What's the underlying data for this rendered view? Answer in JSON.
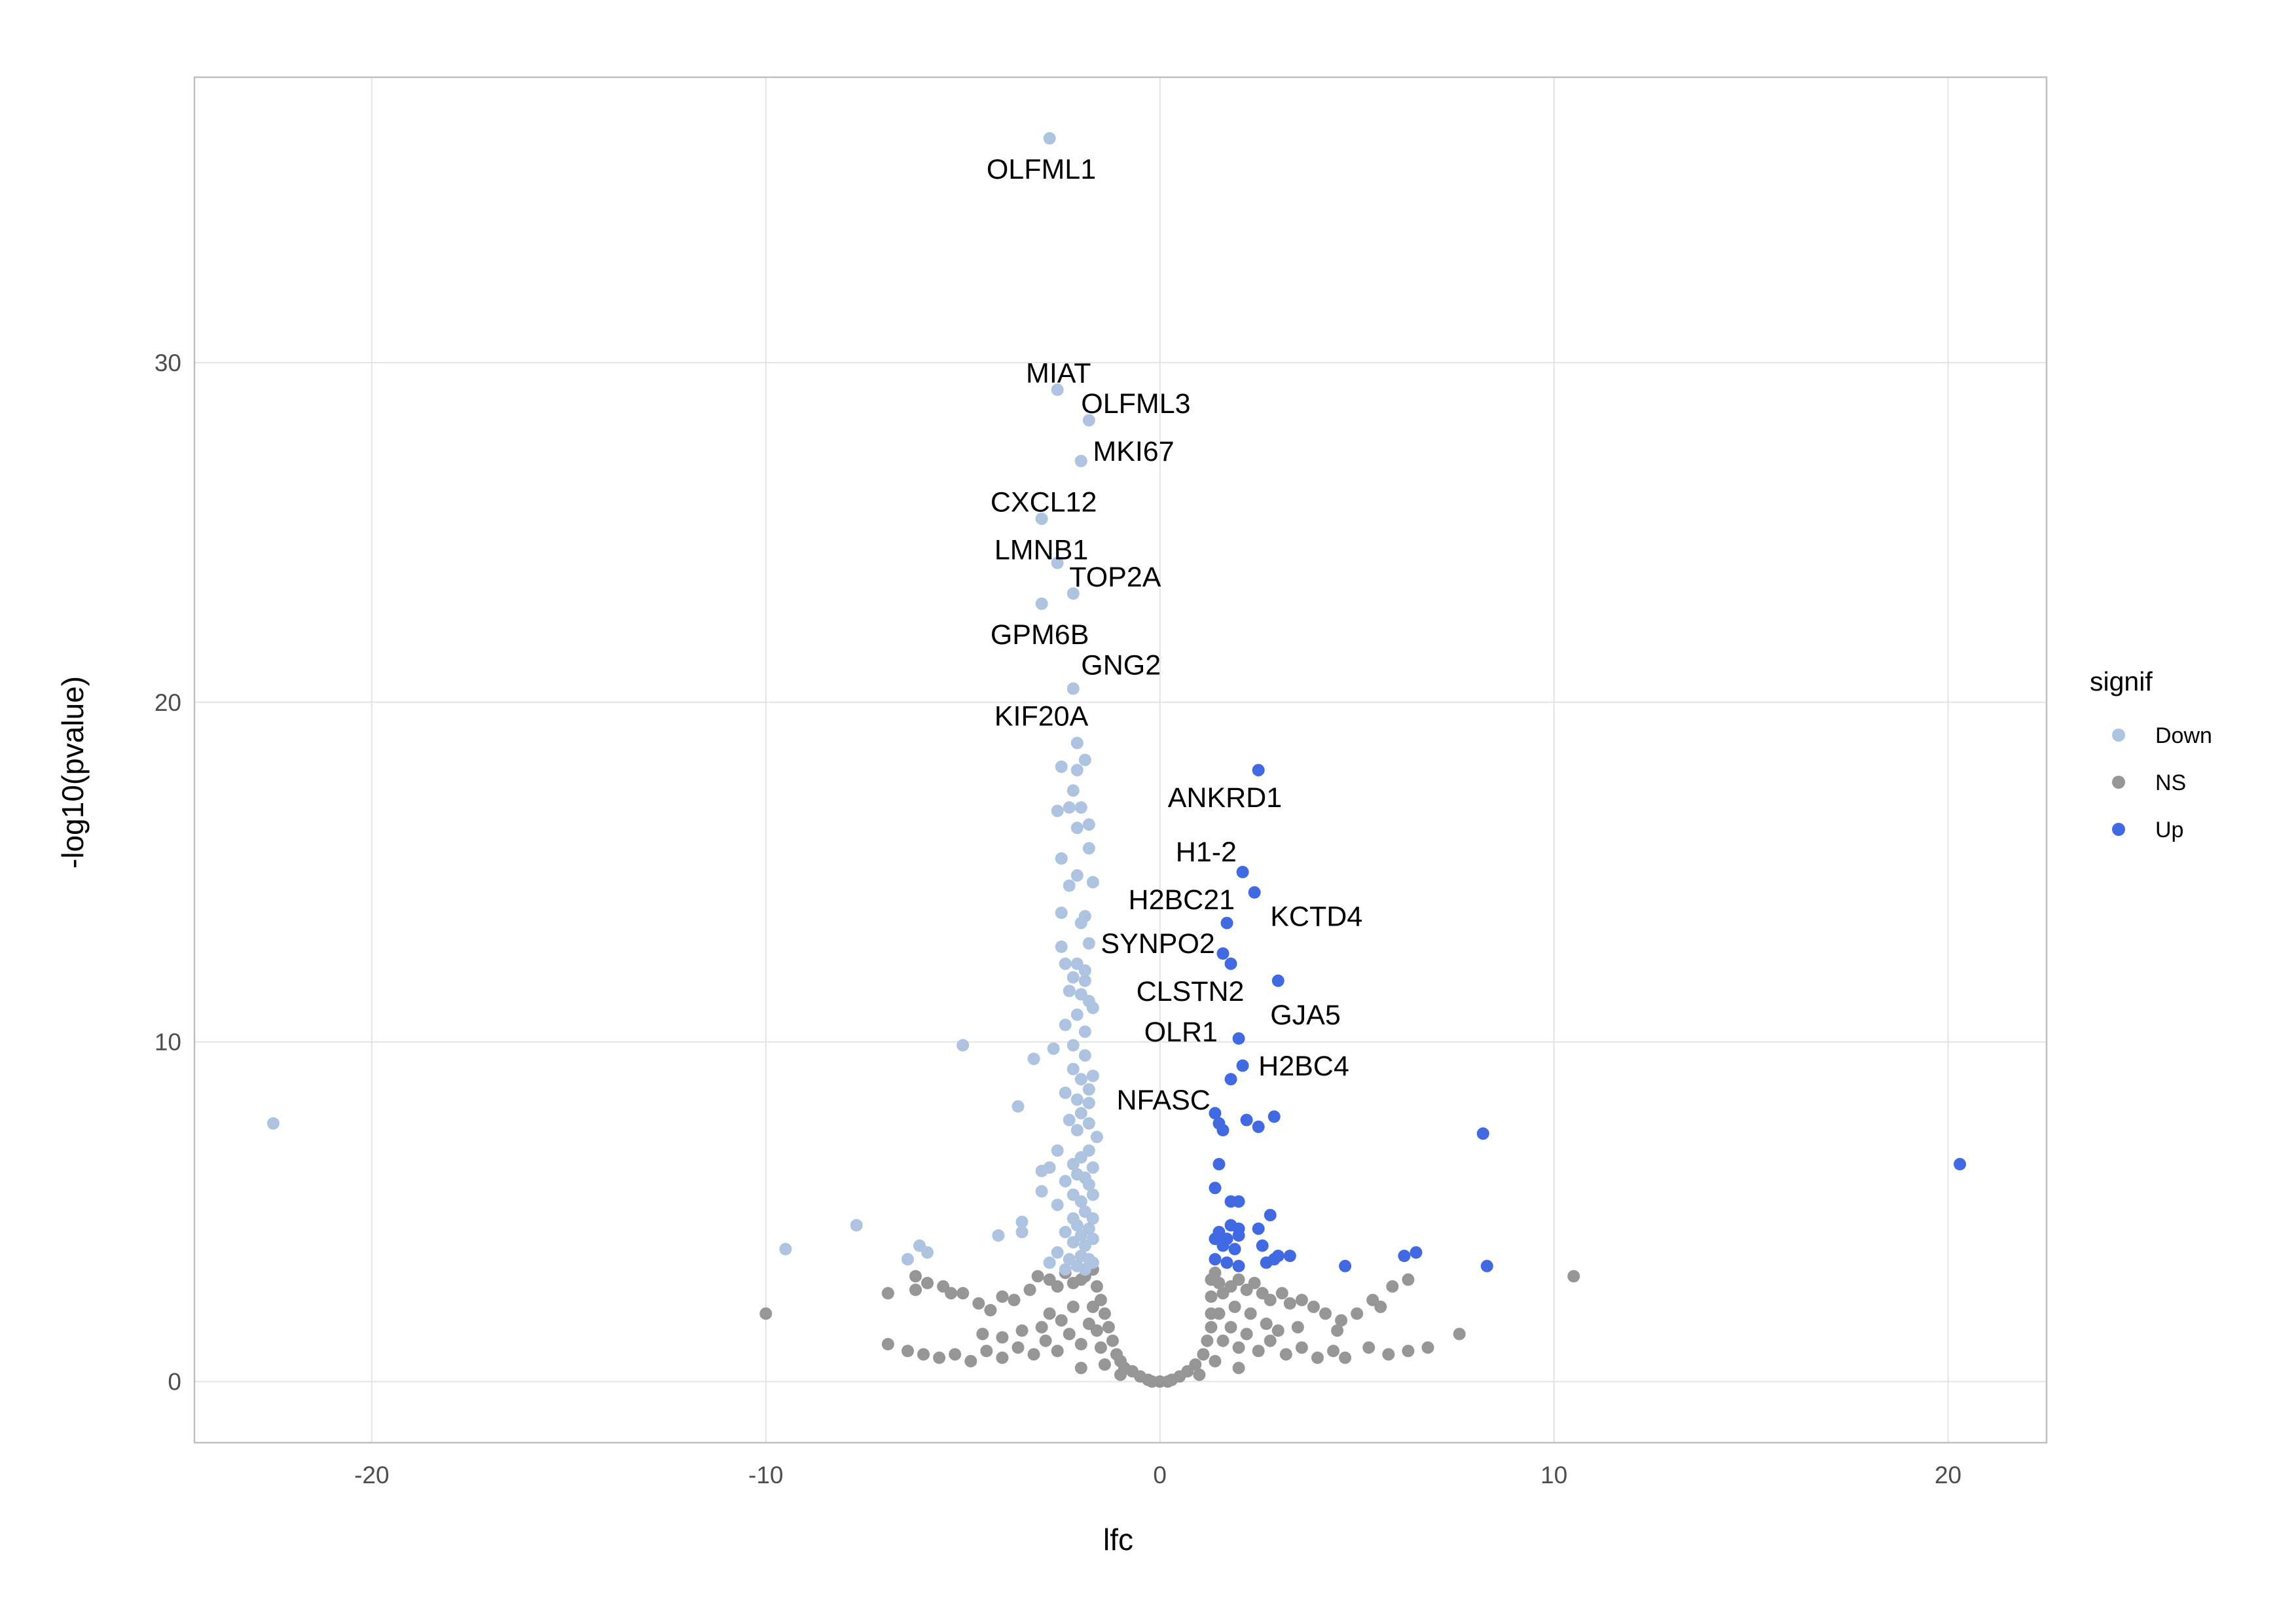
{
  "chart_data": {
    "type": "scatter",
    "xlabel": "lfc",
    "ylabel": "-log10(pvalue)",
    "xlim": [
      -24.5,
      22.5
    ],
    "ylim": [
      -1.8,
      38.4
    ],
    "x_ticks": [
      -20,
      -10,
      0,
      10,
      20
    ],
    "x_tick_labels": [
      "-20",
      "-10",
      "0",
      "10",
      "20"
    ],
    "y_ticks": [
      0,
      10,
      20,
      30
    ],
    "y_tick_labels": [
      "0",
      "10",
      "20",
      "30"
    ],
    "grid": true,
    "legend": {
      "title": "signif",
      "position": "right",
      "entries": [
        {
          "label": "Down",
          "color": "#aec3df"
        },
        {
          "label": "NS",
          "color": "#969696"
        },
        {
          "label": "Up",
          "color": "#4169e1"
        }
      ]
    },
    "series": [
      {
        "name": "Down",
        "color": "#aec3df",
        "points": [
          [
            -2.8,
            36.6
          ],
          [
            -2.6,
            29.2
          ],
          [
            -1.8,
            28.3
          ],
          [
            -2.0,
            27.1
          ],
          [
            -3.0,
            25.4
          ],
          [
            -2.6,
            24.1
          ],
          [
            -2.2,
            23.2
          ],
          [
            -3.0,
            22.9
          ],
          [
            -2.2,
            20.4
          ],
          [
            -2.1,
            18.8
          ],
          [
            -2.5,
            18.1
          ],
          [
            -2.1,
            18.0
          ],
          [
            -1.9,
            18.3
          ],
          [
            -2.2,
            17.4
          ],
          [
            -2.6,
            16.8
          ],
          [
            -2.3,
            16.9
          ],
          [
            -2.0,
            16.9
          ],
          [
            -2.1,
            16.3
          ],
          [
            -1.8,
            16.4
          ],
          [
            -1.8,
            15.7
          ],
          [
            -2.5,
            15.4
          ],
          [
            -2.1,
            14.9
          ],
          [
            -1.7,
            14.7
          ],
          [
            -2.3,
            14.6
          ],
          [
            -2.0,
            13.5
          ],
          [
            -1.9,
            13.7
          ],
          [
            -2.5,
            13.8
          ],
          [
            -2.5,
            12.8
          ],
          [
            -1.8,
            12.9
          ],
          [
            -2.4,
            12.3
          ],
          [
            -2.1,
            12.3
          ],
          [
            -1.9,
            12.1
          ],
          [
            -2.2,
            11.9
          ],
          [
            -1.9,
            11.8
          ],
          [
            -2.3,
            11.5
          ],
          [
            -2.0,
            11.4
          ],
          [
            -1.8,
            11.2
          ],
          [
            -2.1,
            10.8
          ],
          [
            -1.7,
            11.0
          ],
          [
            -2.4,
            10.5
          ],
          [
            -1.9,
            10.3
          ],
          [
            -2.7,
            9.8
          ],
          [
            -2.2,
            9.9
          ],
          [
            -1.9,
            9.6
          ],
          [
            -5.0,
            9.9
          ],
          [
            -3.2,
            9.5
          ],
          [
            -2.2,
            9.2
          ],
          [
            -1.7,
            9.0
          ],
          [
            -2.0,
            8.9
          ],
          [
            -1.8,
            8.6
          ],
          [
            -2.4,
            8.5
          ],
          [
            -2.1,
            8.3
          ],
          [
            -1.8,
            8.2
          ],
          [
            -3.6,
            8.1
          ],
          [
            -2.0,
            7.9
          ],
          [
            -2.3,
            7.7
          ],
          [
            -1.8,
            7.6
          ],
          [
            -2.1,
            7.4
          ],
          [
            -1.6,
            7.2
          ],
          [
            -22.5,
            7.6
          ],
          [
            -2.6,
            6.8
          ],
          [
            -2.0,
            6.6
          ],
          [
            -1.8,
            6.8
          ],
          [
            -2.2,
            6.4
          ],
          [
            -1.7,
            6.3
          ],
          [
            -3.0,
            6.2
          ],
          [
            -2.8,
            6.3
          ],
          [
            -2.1,
            6.1
          ],
          [
            -1.9,
            6.0
          ],
          [
            -2.4,
            5.9
          ],
          [
            -1.8,
            5.8
          ],
          [
            -3.0,
            5.6
          ],
          [
            -2.2,
            5.5
          ],
          [
            -1.7,
            5.5
          ],
          [
            -2.0,
            5.3
          ],
          [
            -2.6,
            5.2
          ],
          [
            -1.9,
            5.0
          ],
          [
            -2.2,
            4.8
          ],
          [
            -1.7,
            4.8
          ],
          [
            -3.5,
            4.7
          ],
          [
            -2.1,
            4.6
          ],
          [
            -1.8,
            4.5
          ],
          [
            -7.7,
            4.6
          ],
          [
            -2.4,
            4.4
          ],
          [
            -2.0,
            4.3
          ],
          [
            -4.1,
            4.3
          ],
          [
            -3.5,
            4.4
          ],
          [
            -1.7,
            4.2
          ],
          [
            -2.2,
            4.1
          ],
          [
            -1.9,
            4.0
          ],
          [
            -6.1,
            4.0
          ],
          [
            -5.9,
            3.8
          ],
          [
            -9.5,
            3.9
          ],
          [
            -2.6,
            3.8
          ],
          [
            -2.0,
            3.7
          ],
          [
            -1.8,
            3.6
          ],
          [
            -2.3,
            3.6
          ],
          [
            -6.4,
            3.6
          ],
          [
            -2.8,
            3.5
          ],
          [
            -2.1,
            3.4
          ],
          [
            -1.9,
            3.3
          ],
          [
            -2.4,
            3.3
          ],
          [
            -1.7,
            3.5
          ]
        ]
      },
      {
        "name": "Up",
        "color": "#4169e1",
        "points": [
          [
            2.5,
            18.0
          ],
          [
            2.1,
            15.0
          ],
          [
            2.4,
            14.4
          ],
          [
            1.7,
            13.5
          ],
          [
            1.6,
            12.6
          ],
          [
            1.8,
            12.3
          ],
          [
            3.0,
            11.8
          ],
          [
            2.0,
            10.1
          ],
          [
            2.1,
            9.3
          ],
          [
            1.8,
            8.9
          ],
          [
            1.4,
            7.9
          ],
          [
            1.5,
            7.6
          ],
          [
            1.6,
            7.4
          ],
          [
            2.2,
            7.7
          ],
          [
            2.5,
            7.5
          ],
          [
            2.9,
            7.8
          ],
          [
            8.2,
            7.3
          ],
          [
            20.3,
            6.4
          ],
          [
            1.5,
            6.4
          ],
          [
            1.4,
            5.7
          ],
          [
            1.8,
            5.3
          ],
          [
            2.0,
            5.3
          ],
          [
            2.8,
            4.9
          ],
          [
            1.5,
            4.4
          ],
          [
            1.8,
            4.6
          ],
          [
            2.0,
            4.5
          ],
          [
            2.5,
            4.5
          ],
          [
            1.4,
            4.2
          ],
          [
            1.7,
            4.2
          ],
          [
            2.0,
            4.3
          ],
          [
            1.6,
            4.0
          ],
          [
            1.9,
            3.9
          ],
          [
            2.6,
            4.0
          ],
          [
            3.0,
            3.7
          ],
          [
            3.3,
            3.7
          ],
          [
            1.4,
            3.6
          ],
          [
            1.7,
            3.5
          ],
          [
            2.0,
            3.4
          ],
          [
            2.7,
            3.5
          ],
          [
            2.9,
            3.6
          ],
          [
            4.7,
            3.4
          ],
          [
            6.2,
            3.7
          ],
          [
            6.5,
            3.8
          ],
          [
            8.3,
            3.4
          ]
        ]
      },
      {
        "name": "NS",
        "color": "#969696",
        "points": [
          [
            -10.0,
            2.0
          ],
          [
            -6.9,
            2.6
          ],
          [
            -6.9,
            1.1
          ],
          [
            -6.2,
            3.1
          ],
          [
            -5.9,
            2.9
          ],
          [
            -6.2,
            2.7
          ],
          [
            -5.5,
            2.8
          ],
          [
            -5.3,
            2.6
          ],
          [
            -5.0,
            2.6
          ],
          [
            -4.6,
            2.3
          ],
          [
            -4.3,
            2.1
          ],
          [
            -4.0,
            2.5
          ],
          [
            -3.7,
            2.4
          ],
          [
            -3.3,
            2.7
          ],
          [
            -3.1,
            3.1
          ],
          [
            -2.8,
            3.0
          ],
          [
            -2.6,
            2.8
          ],
          [
            -2.4,
            3.2
          ],
          [
            -2.2,
            2.9
          ],
          [
            -2.0,
            3.0
          ],
          [
            -1.9,
            3.1
          ],
          [
            -1.7,
            3.3
          ],
          [
            -1.6,
            2.8
          ],
          [
            -1.5,
            2.4
          ],
          [
            -1.4,
            2.0
          ],
          [
            -1.3,
            1.6
          ],
          [
            -1.2,
            1.2
          ],
          [
            -1.1,
            0.8
          ],
          [
            -1.0,
            0.6
          ],
          [
            -0.9,
            0.4
          ],
          [
            -0.7,
            0.3
          ],
          [
            -0.5,
            0.15
          ],
          [
            -0.3,
            0.05
          ],
          [
            0.0,
            0.0
          ],
          [
            0.3,
            0.05
          ],
          [
            0.5,
            0.15
          ],
          [
            0.7,
            0.3
          ],
          [
            0.9,
            0.5
          ],
          [
            1.1,
            0.8
          ],
          [
            1.2,
            1.2
          ],
          [
            1.3,
            1.6
          ],
          [
            1.3,
            2.0
          ],
          [
            1.3,
            2.5
          ],
          [
            1.3,
            3.0
          ],
          [
            1.4,
            3.2
          ],
          [
            1.5,
            2.9
          ],
          [
            1.6,
            2.6
          ],
          [
            1.8,
            2.8
          ],
          [
            2.0,
            3.0
          ],
          [
            2.2,
            2.7
          ],
          [
            2.4,
            2.9
          ],
          [
            2.6,
            2.6
          ],
          [
            2.8,
            2.4
          ],
          [
            3.1,
            2.6
          ],
          [
            3.3,
            2.3
          ],
          [
            3.6,
            2.4
          ],
          [
            3.9,
            2.2
          ],
          [
            4.2,
            2.0
          ],
          [
            4.6,
            1.8
          ],
          [
            5.0,
            2.0
          ],
          [
            5.4,
            2.4
          ],
          [
            5.6,
            2.2
          ],
          [
            5.9,
            2.8
          ],
          [
            6.3,
            3.0
          ],
          [
            7.6,
            1.4
          ],
          [
            10.5,
            3.1
          ],
          [
            -6.4,
            0.9
          ],
          [
            -6.0,
            0.8
          ],
          [
            -5.6,
            0.7
          ],
          [
            -5.2,
            0.8
          ],
          [
            -4.8,
            0.6
          ],
          [
            -4.4,
            0.9
          ],
          [
            -4.0,
            0.7
          ],
          [
            -3.6,
            1.0
          ],
          [
            -3.2,
            0.8
          ],
          [
            -2.9,
            1.2
          ],
          [
            -2.6,
            0.9
          ],
          [
            -2.3,
            1.4
          ],
          [
            -2.0,
            1.1
          ],
          [
            -1.8,
            1.7
          ],
          [
            -1.7,
            2.2
          ],
          [
            -1.6,
            1.5
          ],
          [
            -1.5,
            1.0
          ],
          [
            -2.5,
            1.8
          ],
          [
            -3.0,
            1.6
          ],
          [
            -3.5,
            1.5
          ],
          [
            -4.0,
            1.3
          ],
          [
            -4.5,
            1.4
          ],
          [
            -2.2,
            2.2
          ],
          [
            -2.8,
            2.0
          ],
          [
            1.6,
            1.2
          ],
          [
            1.8,
            1.6
          ],
          [
            2.0,
            1.0
          ],
          [
            2.2,
            1.4
          ],
          [
            2.5,
            0.9
          ],
          [
            2.8,
            1.2
          ],
          [
            3.2,
            0.8
          ],
          [
            3.6,
            1.0
          ],
          [
            4.0,
            0.7
          ],
          [
            4.4,
            0.9
          ],
          [
            4.7,
            0.7
          ],
          [
            5.3,
            1.0
          ],
          [
            5.8,
            0.8
          ],
          [
            6.3,
            0.9
          ],
          [
            6.8,
            1.0
          ],
          [
            1.5,
            2.0
          ],
          [
            1.9,
            2.2
          ],
          [
            2.3,
            2.0
          ],
          [
            2.7,
            1.7
          ],
          [
            3.0,
            1.5
          ],
          [
            3.5,
            1.6
          ],
          [
            4.5,
            1.5
          ],
          [
            1.4,
            0.6
          ],
          [
            -1.4,
            0.5
          ],
          [
            -2.0,
            0.4
          ],
          [
            2.0,
            0.4
          ],
          [
            1.0,
            0.2
          ],
          [
            -1.0,
            0.2
          ],
          [
            0.2,
            0.0
          ],
          [
            -0.2,
            0.0
          ]
        ]
      }
    ],
    "annotations": [
      {
        "text": "OLFML1",
        "x": -4.4,
        "y": 35.7
      },
      {
        "text": "MIAT",
        "x": -3.4,
        "y": 29.7
      },
      {
        "text": "OLFML3",
        "x": -2.0,
        "y": 28.8
      },
      {
        "text": "MKI67",
        "x": -1.7,
        "y": 27.4
      },
      {
        "text": "CXCL12",
        "x": -4.3,
        "y": 25.9
      },
      {
        "text": "LMNB1",
        "x": -4.2,
        "y": 24.5
      },
      {
        "text": "TOP2A",
        "x": -2.3,
        "y": 23.7
      },
      {
        "text": "GPM6B",
        "x": -4.3,
        "y": 22.0
      },
      {
        "text": "GNG2",
        "x": -2.0,
        "y": 21.1
      },
      {
        "text": "KIF20A",
        "x": -4.2,
        "y": 19.6
      },
      {
        "text": "ANKRD1",
        "x": 0.2,
        "y": 17.2
      },
      {
        "text": "H1-2",
        "x": 0.4,
        "y": 15.6
      },
      {
        "text": "H2BC21",
        "x": -0.8,
        "y": 14.2
      },
      {
        "text": "KCTD4",
        "x": 2.8,
        "y": 13.7
      },
      {
        "text": "SYNPO2",
        "x": -1.5,
        "y": 12.9
      },
      {
        "text": "CLSTN2",
        "x": -0.6,
        "y": 11.5
      },
      {
        "text": "GJA5",
        "x": 2.8,
        "y": 10.8
      },
      {
        "text": "OLR1",
        "x": -0.4,
        "y": 10.3
      },
      {
        "text": "H2BC4",
        "x": 2.5,
        "y": 9.3
      },
      {
        "text": "NFASC",
        "x": -1.1,
        "y": 8.3
      }
    ]
  }
}
